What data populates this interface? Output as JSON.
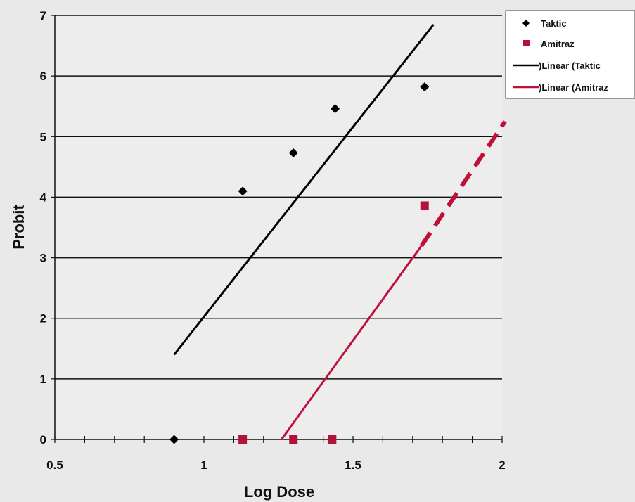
{
  "chart_data": {
    "type": "scatter",
    "xlabel": "Log Dose",
    "ylabel": "Probit",
    "xlim": [
      0.5,
      2
    ],
    "ylim": [
      0,
      7
    ],
    "x_ticks": [
      0.5,
      1,
      1.5,
      2
    ],
    "x_tick_labels": [
      "0.5",
      "1",
      "1.5",
      "2"
    ],
    "x_minor_step": 0.1,
    "y_ticks": [
      0,
      1,
      2,
      3,
      4,
      5,
      6,
      7
    ],
    "y_tick_labels": [
      "0",
      "1",
      "2",
      "3",
      "4",
      "5",
      "6",
      "7"
    ],
    "grid": "horizontal",
    "legend_position": "top-right",
    "series": [
      {
        "name": "Taktic",
        "marker": "diamond",
        "color": "#000000",
        "points": [
          {
            "x": 0.9,
            "y": 0.0
          },
          {
            "x": 1.13,
            "y": 4.1
          },
          {
            "x": 1.3,
            "y": 4.73
          },
          {
            "x": 1.44,
            "y": 5.46
          },
          {
            "x": 1.74,
            "y": 5.82
          }
        ]
      },
      {
        "name": "Amitraz",
        "marker": "square",
        "color": "#b3123a",
        "points": [
          {
            "x": 1.13,
            "y": 0.0
          },
          {
            "x": 1.3,
            "y": 0.0
          },
          {
            "x": 1.43,
            "y": 0.0
          },
          {
            "x": 1.74,
            "y": 3.86
          }
        ]
      }
    ],
    "trendlines": [
      {
        "name": ")Linear (Taktic",
        "color": "#000000",
        "segments": [
          {
            "x1": 0.9,
            "y1": 1.4,
            "x2": 1.77,
            "y2": 6.85,
            "style": "solid"
          }
        ]
      },
      {
        "name": ")Linear (Amitraz",
        "color": "#c0103a",
        "segments": [
          {
            "x1": 1.26,
            "y1": 0.0,
            "x2": 1.73,
            "y2": 3.2,
            "style": "solid"
          },
          {
            "x1": 1.73,
            "y1": 3.2,
            "x2": 2.01,
            "y2": 5.25,
            "style": "dashed"
          }
        ]
      }
    ],
    "legend": [
      {
        "label": "Taktic",
        "kind": "diamond",
        "color": "#000000"
      },
      {
        "label": "Amitraz",
        "kind": "square",
        "color": "#b3123a"
      },
      {
        "label": ")Linear (Taktic",
        "kind": "line",
        "color": "#000000"
      },
      {
        "label": ")Linear (Amitraz",
        "kind": "line",
        "color": "#c0103a"
      }
    ]
  }
}
